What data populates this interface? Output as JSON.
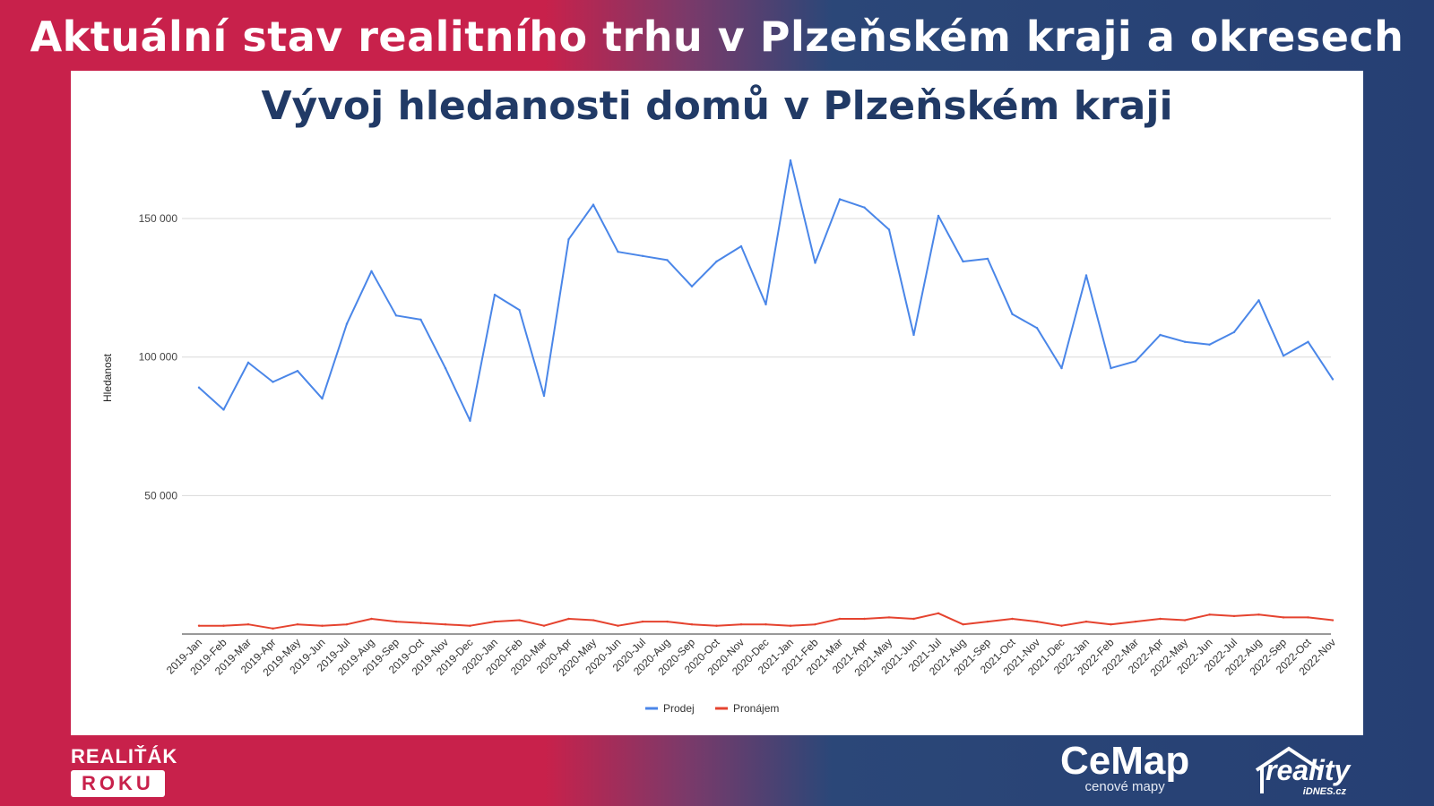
{
  "header": {
    "title": "Aktuální stav realitního trhu v Plzeňském kraji a okresech"
  },
  "branding": {
    "realitak_top": "REALIŤÁK",
    "realitak_bottom": "ROKU",
    "cemap_name": "CeMap",
    "cemap_sub": "cenové mapy",
    "reality_name": "reality",
    "reality_sub": "iDNES.cz"
  },
  "colors": {
    "prodej": "#4a86e8",
    "pronajem": "#e5432f",
    "title": "#213a66",
    "background_left": "#c8214b",
    "background_right": "#263f73"
  },
  "chart_data": {
    "type": "line",
    "title": "Vývoj hledanosti domů v Plzeňském kraji",
    "xlabel": "",
    "ylabel": "Hledanost",
    "ylim": [
      0,
      175000
    ],
    "yticks": [
      50000,
      100000,
      150000
    ],
    "ytick_labels": [
      "50 000",
      "100 000",
      "150 000"
    ],
    "grid": true,
    "legend": "bottom",
    "categories": [
      "2019-Jan",
      "2019-Feb",
      "2019-Mar",
      "2019-Apr",
      "2019-May",
      "2019-Jun",
      "2019-Jul",
      "2019-Aug",
      "2019-Sep",
      "2019-Oct",
      "2019-Nov",
      "2019-Dec",
      "2020-Jan",
      "2020-Feb",
      "2020-Mar",
      "2020-Apr",
      "2020-May",
      "2020-Jun",
      "2020-Jul",
      "2020-Aug",
      "2020-Sep",
      "2020-Oct",
      "2020-Nov",
      "2020-Dec",
      "2021-Jan",
      "2021-Feb",
      "2021-Mar",
      "2021-Apr",
      "2021-May",
      "2021-Jun",
      "2021-Jul",
      "2021-Aug",
      "2021-Sep",
      "2021-Oct",
      "2021-Nov",
      "2021-Dec",
      "2022-Jan",
      "2022-Feb",
      "2022-Mar",
      "2022-Apr",
      "2022-May",
      "2022-Jun",
      "2022-Jul",
      "2022-Aug",
      "2022-Sep",
      "2022-Oct",
      "2022-Nov"
    ],
    "series": [
      {
        "name": "Prodej",
        "values": [
          89000,
          81000,
          98000,
          91000,
          95000,
          85000,
          112000,
          131000,
          115000,
          113500,
          96000,
          77000,
          122500,
          117000,
          86000,
          142500,
          155000,
          138000,
          136500,
          135000,
          125500,
          134500,
          140000,
          119000,
          171000,
          134000,
          157000,
          154000,
          146000,
          108000,
          151000,
          134500,
          135500,
          115500,
          110500,
          96000,
          129500,
          96000,
          98500,
          108000,
          105500,
          104500,
          109000,
          120500,
          100500,
          105500,
          92000
        ]
      },
      {
        "name": "Pronájem",
        "values": [
          3000,
          3000,
          3500,
          2000,
          3500,
          3000,
          3500,
          5500,
          4500,
          4000,
          3500,
          3000,
          4500,
          5000,
          3000,
          5500,
          5000,
          3000,
          4500,
          4500,
          3500,
          3000,
          3500,
          3500,
          3000,
          3500,
          5500,
          5500,
          6000,
          5500,
          7500,
          3500,
          4500,
          5500,
          4500,
          3000,
          4500,
          3500,
          4500,
          5500,
          5000,
          7000,
          6500,
          7000,
          6000,
          6000,
          5000
        ]
      }
    ]
  }
}
